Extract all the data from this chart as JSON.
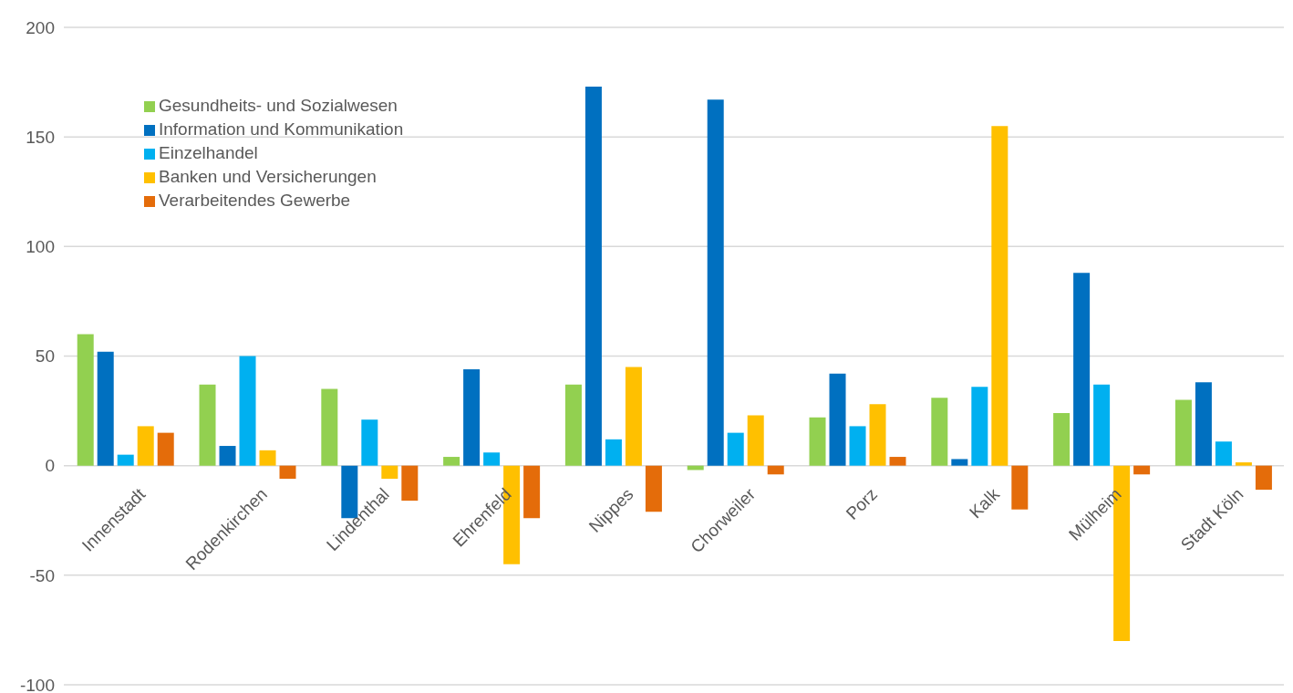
{
  "chart_data": {
    "type": "bar",
    "categories": [
      "Innenstadt",
      "Rodenkirchen",
      "Lindenthal",
      "Ehrenfeld",
      "Nippes",
      "Chorweiler",
      "Porz",
      "Kalk",
      "Mülheim",
      "Stadt Köln"
    ],
    "series": [
      {
        "name": "Gesundheits- und Sozialwesen",
        "color": "#92d050",
        "values": [
          60,
          37,
          35,
          4,
          37,
          -2,
          22,
          31,
          24,
          30
        ]
      },
      {
        "name": "Information und Kommunikation",
        "color": "#0070c0",
        "values": [
          52,
          9,
          -24,
          44,
          173,
          167,
          42,
          3,
          88,
          38
        ]
      },
      {
        "name": "Einzelhandel",
        "color": "#00b0f0",
        "values": [
          5,
          50,
          21,
          6,
          12,
          15,
          18,
          36,
          37,
          11
        ]
      },
      {
        "name": "Banken und Versicherungen",
        "color": "#ffc000",
        "values": [
          18,
          7,
          -6,
          -45,
          45,
          23,
          28,
          155,
          -80,
          1.5
        ]
      },
      {
        "name": "Verarbeitendes Gewerbe",
        "color": "#e46c0a",
        "values": [
          15,
          -6,
          -16,
          -24,
          -21,
          -4,
          4,
          -20,
          -4,
          -11
        ]
      }
    ],
    "ylim": [
      -100,
      200
    ],
    "yticks": [
      -100,
      -50,
      0,
      50,
      100,
      150,
      200
    ],
    "grid": "y",
    "legend": "top left"
  }
}
